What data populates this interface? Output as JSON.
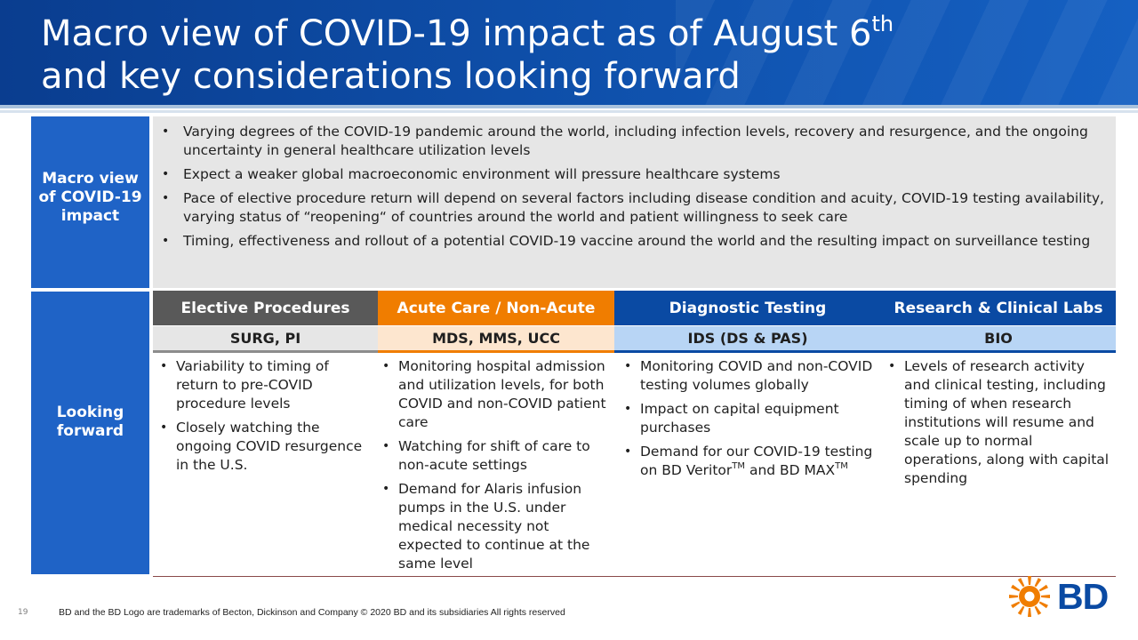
{
  "title": {
    "line1_main": "Macro view of COVID-19 impact as of August 6",
    "line1_sup": "th",
    "line2": "and key considerations looking forward"
  },
  "side_labels": {
    "macro": "Macro view of COVID-19 impact",
    "forward": "Looking forward"
  },
  "macro_bullets": [
    "Varying degrees of the COVID-19 pandemic around the world, including infection levels, recovery and resurgence, and the ongoing uncertainty in general healthcare utilization levels",
    "Expect a weaker global macroeconomic environment will pressure healthcare systems",
    "Pace of elective procedure return will depend on several factors including disease condition and acuity, COVID-19 testing availability, varying status of “reopening“ of countries around the world and patient willingness to seek care",
    "Timing, effectiveness and rollout of a potential COVID-19 vaccine around the world and the resulting impact on surveillance testing"
  ],
  "columns": [
    {
      "header": "Elective Procedures",
      "subheader": "SURG, PI",
      "bullets": [
        "Variability to timing of return to pre-COVID procedure levels",
        "Closely watching the ongoing COVID resurgence in the U.S."
      ]
    },
    {
      "header": "Acute Care / Non-Acute",
      "subheader": "MDS, MMS, UCC",
      "bullets": [
        "Monitoring hospital admission and utilization levels, for both COVID and non-COVID patient care",
        "Watching for shift of care to non-acute settings",
        "Demand for Alaris infusion pumps in the U.S. under medical necessity not expected to continue at the same level"
      ]
    },
    {
      "header": "Diagnostic Testing",
      "subheader": "IDS (DS & PAS)",
      "bullets": [
        "Monitoring COVID and non-COVID testing volumes globally",
        "Impact on capital equipment purchases"
      ],
      "bullet3_part1": "Demand for our COVID-19 testing on BD Veritor",
      "bullet3_tm1": "TM",
      "bullet3_part2": " and BD MAX",
      "bullet3_tm2": "TM"
    },
    {
      "header": "Research & Clinical Labs",
      "subheader": "BIO",
      "bullets": [
        "Levels of research activity and clinical testing, including timing of when research institutions will resume and scale up to normal operations, along with capital spending"
      ]
    }
  ],
  "footer": {
    "page_number": "19",
    "trademark_text": "BD and the BD Logo are trademarks of Becton, Dickinson and Company  © 2020 BD and its subsidiaries  All rights reserved"
  },
  "logo": {
    "text": "BD",
    "color": "#0a4aa3",
    "sun_color": "#f07d00"
  },
  "colors": {
    "header_blue": "#0e4ea8",
    "label_blue": "#1f63c6",
    "elective_gray": "#595959",
    "acute_orange": "#f07d00",
    "diag_blue": "#0a4aa3"
  }
}
